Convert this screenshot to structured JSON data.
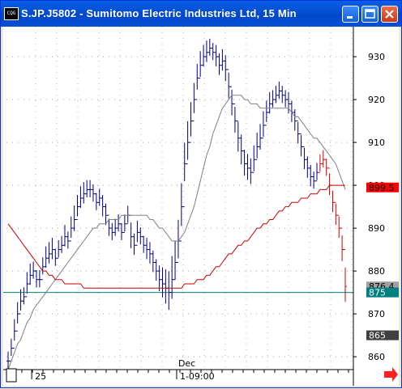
{
  "window": {
    "title": "S.JP.J5802 - Sumitomo Electric Industries Ltd, 15 Min",
    "icon": "chart-app-icon",
    "icon_text": "CQG",
    "buttons": [
      "minimize-icon",
      "maximize-icon",
      "close-icon"
    ]
  },
  "chart_data": {
    "type": "line",
    "title": "S.JP.J5802 - Sumitomo Electric Industries Ltd, 15 Min",
    "ylim": [
      857,
      937
    ],
    "y_ticks": [
      860,
      870,
      880,
      890,
      900,
      910,
      920,
      930
    ],
    "y_tick_labels": [
      "860",
      "870",
      "880",
      "890",
      "900",
      "910",
      "920",
      "930"
    ],
    "x_labels": [
      {
        "text": "25",
        "bar": 8
      },
      {
        "text": "Dec",
        "bar": 54,
        "row": "top"
      },
      {
        "text": "1-09:00",
        "bar": 54
      }
    ],
    "price_markers": [
      {
        "value": 899.5,
        "label": "899.5",
        "color": "#ff0000",
        "text_color": "#000000"
      },
      {
        "value": 876.4,
        "label": "876.4",
        "color": "#a0a0a0",
        "text_color": "#000000"
      },
      {
        "value": 875,
        "label": "875",
        "color": "#008080",
        "text_color": "#ffffff"
      },
      {
        "value": 865,
        "label": "865",
        "color": "#404040",
        "text_color": "#ffffff"
      }
    ],
    "horizontal_line": {
      "value": 875,
      "color": "#008080"
    },
    "bars": {
      "color": "#000080",
      "last_color": "#cc0000",
      "last_count": 9,
      "closes": [
        859,
        862,
        866,
        870,
        873,
        874,
        877,
        879,
        880,
        878,
        878,
        881,
        883,
        884,
        885,
        883,
        885,
        886,
        888,
        887,
        890,
        892,
        895,
        897,
        898,
        899,
        899,
        898,
        896,
        897,
        895,
        893,
        890,
        889,
        890,
        891,
        889,
        891,
        893,
        888,
        886,
        889,
        888,
        886,
        885,
        884,
        882,
        880,
        878,
        877,
        876,
        875,
        878,
        882,
        887,
        895,
        905,
        910,
        915,
        920,
        925,
        928,
        930,
        931,
        932,
        931,
        930,
        928,
        929,
        927,
        923,
        919,
        915,
        911,
        908,
        905,
        904,
        903,
        906,
        909,
        911,
        914,
        917,
        919,
        920,
        921,
        922,
        921,
        920,
        919,
        917,
        915,
        912,
        909,
        906,
        904,
        902,
        901,
        903,
        905,
        906,
        904,
        900,
        896,
        893,
        890,
        885,
        876.4
      ],
      "ranges": [
        4,
        4,
        5,
        5,
        5,
        4,
        5,
        5,
        4,
        4,
        4,
        4,
        5,
        5,
        5,
        4,
        4,
        4,
        5,
        4,
        5,
        6,
        5,
        5,
        5,
        4,
        4,
        4,
        4,
        4,
        5,
        5,
        4,
        4,
        4,
        4,
        4,
        4,
        4,
        6,
        5,
        5,
        4,
        4,
        5,
        5,
        5,
        5,
        6,
        7,
        8,
        9,
        10,
        9,
        9,
        10,
        9,
        9,
        8,
        7,
        6,
        6,
        5,
        5,
        4,
        4,
        5,
        5,
        5,
        6,
        6,
        6,
        6,
        7,
        7,
        6,
        6,
        6,
        6,
        6,
        6,
        6,
        5,
        5,
        4,
        4,
        4,
        4,
        4,
        5,
        5,
        5,
        5,
        5,
        5,
        5,
        5,
        4,
        4,
        4,
        4,
        4,
        5,
        5,
        5,
        5,
        6,
        8
      ]
    },
    "series": [
      {
        "color": "#808080",
        "values": [
          857,
          859,
          861,
          863,
          864,
          866,
          868,
          869,
          871,
          872,
          873,
          874,
          875,
          876,
          877,
          878,
          879,
          880,
          881,
          882,
          883,
          884,
          885,
          886,
          887,
          888,
          889,
          890,
          890,
          891,
          891,
          891,
          892,
          892,
          892,
          892,
          893,
          893,
          893,
          893,
          893,
          893,
          893,
          893,
          893,
          892,
          892,
          891,
          890,
          890,
          889,
          888,
          887,
          887,
          887,
          888,
          889,
          891,
          893,
          895,
          898,
          901,
          904,
          907,
          909,
          912,
          914,
          916,
          918,
          919,
          920,
          921,
          921,
          921,
          921,
          920,
          920,
          919,
          919,
          919,
          918,
          918,
          918,
          918,
          918,
          918,
          918,
          918,
          918,
          918,
          917,
          916,
          916,
          915,
          914,
          913,
          912,
          911,
          911,
          910,
          909,
          908,
          907,
          906,
          905,
          903,
          901,
          899
        ]
      },
      {
        "color": "#cc0000",
        "values": [
          891,
          890,
          889,
          888,
          887,
          886,
          885,
          884,
          883,
          882,
          881,
          880,
          880,
          879,
          879,
          878,
          878,
          878,
          877,
          877,
          877,
          877,
          877,
          877,
          876,
          876,
          876,
          876,
          876,
          876,
          876,
          876,
          876,
          876,
          876,
          876,
          876,
          876,
          876,
          876,
          876,
          876,
          876,
          876,
          876,
          876,
          876,
          876,
          876,
          876,
          876,
          876,
          876,
          876,
          876,
          876,
          877,
          877,
          877,
          877,
          878,
          878,
          878,
          879,
          879,
          880,
          881,
          881,
          882,
          883,
          884,
          884,
          885,
          886,
          886,
          887,
          887,
          888,
          889,
          890,
          890,
          891,
          891,
          892,
          892,
          893,
          894,
          894,
          895,
          895,
          896,
          896,
          896,
          897,
          897,
          897,
          898,
          898,
          898,
          899,
          899,
          899,
          900,
          900,
          900,
          900,
          900,
          900
        ]
      }
    ]
  }
}
